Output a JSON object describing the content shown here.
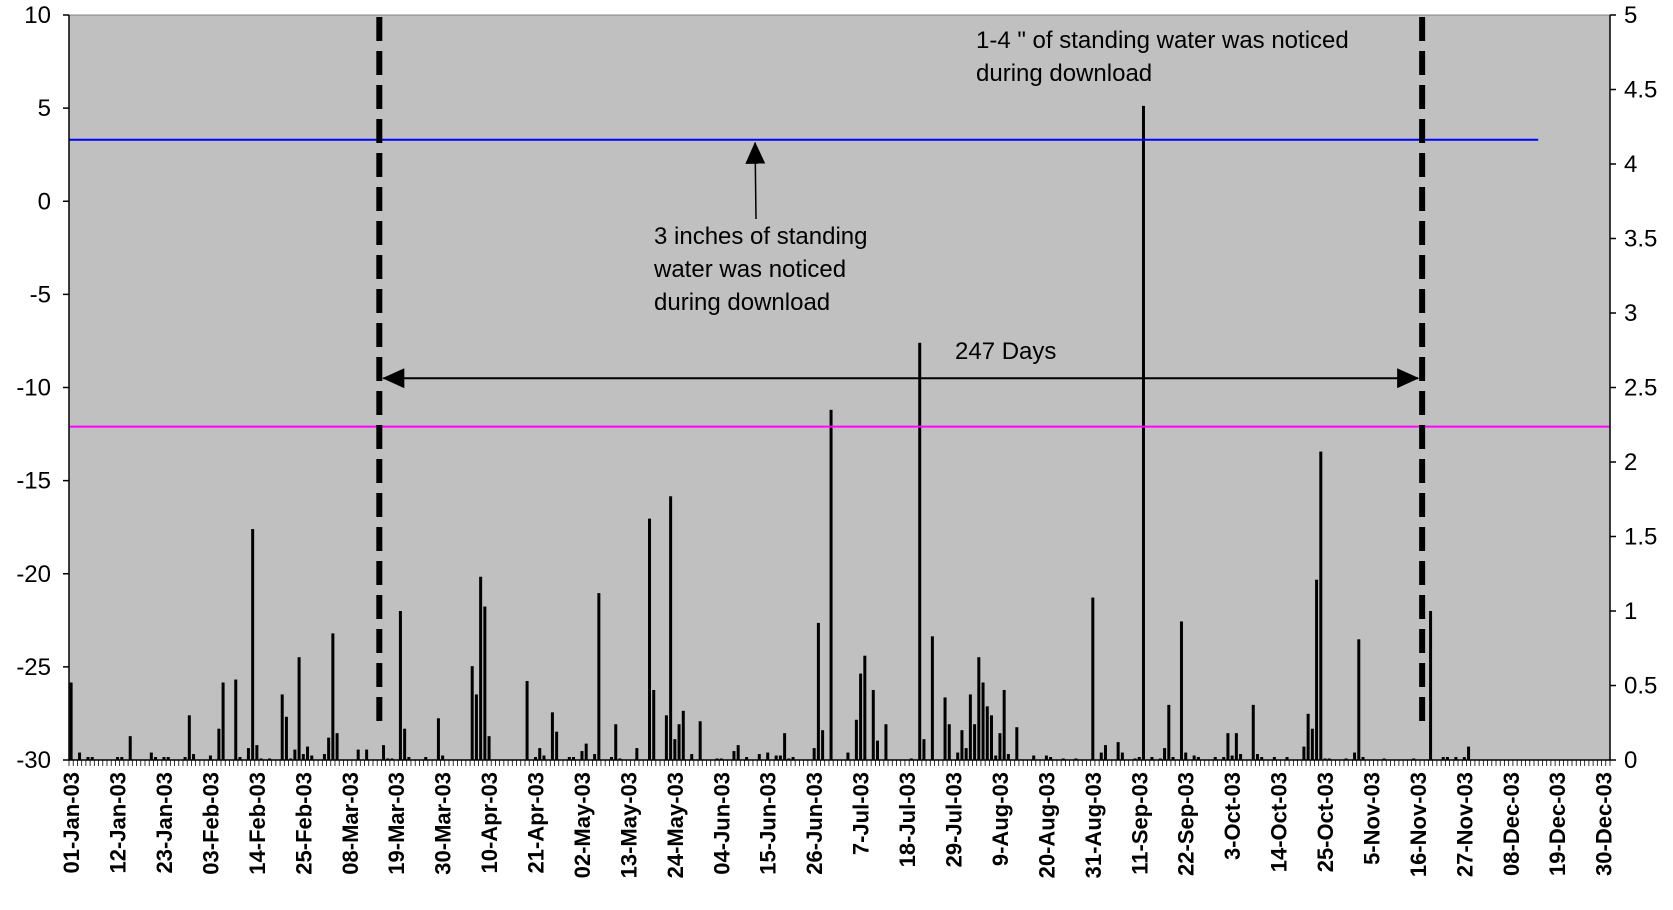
{
  "chart_data": {
    "type": "bar",
    "title": "",
    "xlabel": "",
    "ylabel": "",
    "plot_background": "#C0C0C0",
    "grid": false,
    "legend": "none",
    "x_start": "2003-01-01",
    "x_end": "2003-12-31",
    "x_tick_labels": [
      "01-Jan-03",
      "12-Jan-03",
      "23-Jan-03",
      "03-Feb-03",
      "14-Feb-03",
      "25-Feb-03",
      "08-Mar-03",
      "19-Mar-03",
      "30-Mar-03",
      "10-Apr-03",
      "21-Apr-03",
      "02-May-03",
      "13-May-03",
      "24-May-03",
      "04-Jun-03",
      "15-Jun-03",
      "26-Jun-03",
      "7-Jul-03",
      "18-Jul-03",
      "29-Jul-03",
      "9-Aug-03",
      "20-Aug-03",
      "31-Aug-03",
      "11-Sep-03",
      "22-Sep-03",
      "3-Oct-03",
      "14-Oct-03",
      "25-Oct-03",
      "5-Nov-03",
      "16-Nov-03",
      "27-Nov-03",
      "08-Dec-03",
      "19-Dec-03",
      "30-Dec-03"
    ],
    "y_left": {
      "ylim": [
        -30,
        10
      ],
      "ticks": [
        "10",
        "5",
        "0",
        "-5",
        "-10",
        "-15",
        "-20",
        "-25",
        "-30"
      ]
    },
    "y_right": {
      "ylim": [
        0,
        5
      ],
      "ticks": [
        "5",
        "4.5",
        "4",
        "3.5",
        "3",
        "2.5",
        "2",
        "1.5",
        "1",
        "0.5",
        "0"
      ]
    },
    "series": [
      {
        "axis": "right",
        "color": "#000000",
        "points": [
          [
            "2003-01-01",
            0.52
          ],
          [
            "2003-01-03",
            0.05
          ],
          [
            "2003-01-05",
            0.02
          ],
          [
            "2003-01-06",
            0.02
          ],
          [
            "2003-01-12",
            0.02
          ],
          [
            "2003-01-13",
            0.02
          ],
          [
            "2003-01-15",
            0.16
          ],
          [
            "2003-01-20",
            0.05
          ],
          [
            "2003-01-21",
            0.02
          ],
          [
            "2003-01-23",
            0.02
          ],
          [
            "2003-01-24",
            0.02
          ],
          [
            "2003-01-28",
            0.02
          ],
          [
            "2003-01-29",
            0.3
          ],
          [
            "2003-01-30",
            0.04
          ],
          [
            "2003-02-03",
            0.03
          ],
          [
            "2003-02-05",
            0.21
          ],
          [
            "2003-02-06",
            0.52
          ],
          [
            "2003-02-09",
            0.54
          ],
          [
            "2003-02-10",
            0.02
          ],
          [
            "2003-02-12",
            0.08
          ],
          [
            "2003-02-13",
            1.55
          ],
          [
            "2003-02-14",
            0.1
          ],
          [
            "2003-02-15",
            0.01
          ],
          [
            "2003-02-17",
            0.01
          ],
          [
            "2003-02-20",
            0.44
          ],
          [
            "2003-02-21",
            0.29
          ],
          [
            "2003-02-22",
            0.01
          ],
          [
            "2003-02-23",
            0.07
          ],
          [
            "2003-02-24",
            0.69
          ],
          [
            "2003-02-25",
            0.04
          ],
          [
            "2003-02-26",
            0.09
          ],
          [
            "2003-02-27",
            0.03
          ],
          [
            "2003-03-02",
            0.04
          ],
          [
            "2003-03-03",
            0.15
          ],
          [
            "2003-03-04",
            0.85
          ],
          [
            "2003-03-05",
            0.18
          ],
          [
            "2003-03-10",
            0.07
          ],
          [
            "2003-03-12",
            0.07
          ],
          [
            "2003-03-16",
            0.1
          ],
          [
            "2003-03-17",
            0.01
          ],
          [
            "2003-03-18",
            0.01
          ],
          [
            "2003-03-20",
            1.0
          ],
          [
            "2003-03-21",
            0.21
          ],
          [
            "2003-03-22",
            0.02
          ],
          [
            "2003-03-26",
            0.02
          ],
          [
            "2003-03-29",
            0.28
          ],
          [
            "2003-03-30",
            0.03
          ],
          [
            "2003-04-06",
            0.63
          ],
          [
            "2003-04-07",
            0.44
          ],
          [
            "2003-04-08",
            1.23
          ],
          [
            "2003-04-09",
            1.03
          ],
          [
            "2003-04-10",
            0.16
          ],
          [
            "2003-04-19",
            0.53
          ],
          [
            "2003-04-21",
            0.02
          ],
          [
            "2003-04-22",
            0.08
          ],
          [
            "2003-04-23",
            0.03
          ],
          [
            "2003-04-25",
            0.32
          ],
          [
            "2003-04-26",
            0.19
          ],
          [
            "2003-04-29",
            0.02
          ],
          [
            "2003-04-30",
            0.02
          ],
          [
            "2003-05-02",
            0.06
          ],
          [
            "2003-05-03",
            0.11
          ],
          [
            "2003-05-05",
            0.04
          ],
          [
            "2003-05-06",
            1.12
          ],
          [
            "2003-05-09",
            0.02
          ],
          [
            "2003-05-10",
            0.24
          ],
          [
            "2003-05-11",
            0.01
          ],
          [
            "2003-05-15",
            0.08
          ],
          [
            "2003-05-18",
            1.62
          ],
          [
            "2003-05-19",
            0.47
          ],
          [
            "2003-05-22",
            0.3
          ],
          [
            "2003-05-23",
            1.77
          ],
          [
            "2003-05-24",
            0.14
          ],
          [
            "2003-05-25",
            0.24
          ],
          [
            "2003-05-26",
            0.33
          ],
          [
            "2003-05-28",
            0.04
          ],
          [
            "2003-05-30",
            0.26
          ],
          [
            "2003-06-03",
            0.01
          ],
          [
            "2003-06-04",
            0.01
          ],
          [
            "2003-06-07",
            0.06
          ],
          [
            "2003-06-08",
            0.1
          ],
          [
            "2003-06-10",
            0.02
          ],
          [
            "2003-06-13",
            0.04
          ],
          [
            "2003-06-15",
            0.05
          ],
          [
            "2003-06-17",
            0.03
          ],
          [
            "2003-06-18",
            0.03
          ],
          [
            "2003-06-19",
            0.18
          ],
          [
            "2003-06-20",
            0.01
          ],
          [
            "2003-06-21",
            0.02
          ],
          [
            "2003-06-26",
            0.08
          ],
          [
            "2003-06-27",
            0.92
          ],
          [
            "2003-06-28",
            0.2
          ],
          [
            "2003-06-30",
            2.35
          ],
          [
            "2003-07-04",
            0.05
          ],
          [
            "2003-07-06",
            0.27
          ],
          [
            "2003-07-07",
            0.58
          ],
          [
            "2003-07-08",
            0.7
          ],
          [
            "2003-07-10",
            0.47
          ],
          [
            "2003-07-11",
            0.13
          ],
          [
            "2003-07-13",
            0.24
          ],
          [
            "2003-07-19",
            0.01
          ],
          [
            "2003-07-21",
            2.8
          ],
          [
            "2003-07-22",
            0.14
          ],
          [
            "2003-07-24",
            0.83
          ],
          [
            "2003-07-27",
            0.42
          ],
          [
            "2003-07-28",
            0.24
          ],
          [
            "2003-07-30",
            0.05
          ],
          [
            "2003-07-31",
            0.2
          ],
          [
            "2003-08-01",
            0.08
          ],
          [
            "2003-08-02",
            0.44
          ],
          [
            "2003-08-03",
            0.24
          ],
          [
            "2003-08-04",
            0.69
          ],
          [
            "2003-08-05",
            0.52
          ],
          [
            "2003-08-06",
            0.36
          ],
          [
            "2003-08-07",
            0.3
          ],
          [
            "2003-08-08",
            0.03
          ],
          [
            "2003-08-09",
            0.18
          ],
          [
            "2003-08-10",
            0.47
          ],
          [
            "2003-08-11",
            0.04
          ],
          [
            "2003-08-13",
            0.22
          ],
          [
            "2003-08-17",
            0.03
          ],
          [
            "2003-08-20",
            0.03
          ],
          [
            "2003-08-21",
            0.02
          ],
          [
            "2003-08-24",
            0.01
          ],
          [
            "2003-08-27",
            0.01
          ],
          [
            "2003-08-31",
            1.09
          ],
          [
            "2003-09-02",
            0.05
          ],
          [
            "2003-09-03",
            0.1
          ],
          [
            "2003-09-06",
            0.12
          ],
          [
            "2003-09-07",
            0.05
          ],
          [
            "2003-09-10",
            0.01
          ],
          [
            "2003-09-11",
            0.02
          ],
          [
            "2003-09-12",
            4.39
          ],
          [
            "2003-09-14",
            0.02
          ],
          [
            "2003-09-16",
            0.01
          ],
          [
            "2003-09-17",
            0.08
          ],
          [
            "2003-09-18",
            0.37
          ],
          [
            "2003-09-19",
            0.02
          ],
          [
            "2003-09-21",
            0.93
          ],
          [
            "2003-09-22",
            0.05
          ],
          [
            "2003-09-24",
            0.03
          ],
          [
            "2003-09-25",
            0.02
          ],
          [
            "2003-09-29",
            0.02
          ],
          [
            "2003-10-01",
            0.02
          ],
          [
            "2003-10-02",
            0.18
          ],
          [
            "2003-10-03",
            0.03
          ],
          [
            "2003-10-04",
            0.18
          ],
          [
            "2003-10-05",
            0.04
          ],
          [
            "2003-10-08",
            0.37
          ],
          [
            "2003-10-09",
            0.04
          ],
          [
            "2003-10-10",
            0.02
          ],
          [
            "2003-10-13",
            0.02
          ],
          [
            "2003-10-16",
            0.02
          ],
          [
            "2003-10-20",
            0.09
          ],
          [
            "2003-10-21",
            0.31
          ],
          [
            "2003-10-22",
            0.21
          ],
          [
            "2003-10-23",
            1.21
          ],
          [
            "2003-10-24",
            2.07
          ],
          [
            "2003-10-25",
            0.01
          ],
          [
            "2003-10-26",
            0.01
          ],
          [
            "2003-10-30",
            0.01
          ],
          [
            "2003-11-01",
            0.05
          ],
          [
            "2003-11-02",
            0.81
          ],
          [
            "2003-11-03",
            0.02
          ],
          [
            "2003-11-08",
            0.01
          ],
          [
            "2003-11-15",
            0.01
          ],
          [
            "2003-11-19",
            1.0
          ],
          [
            "2003-11-22",
            0.02
          ],
          [
            "2003-11-23",
            0.02
          ],
          [
            "2003-11-25",
            0.02
          ],
          [
            "2003-11-27",
            0.02
          ],
          [
            "2003-11-28",
            0.09
          ]
        ]
      },
      {
        "axis": "left",
        "type": "hline",
        "color": "#0000FF",
        "y": 3.3,
        "x_range": [
          "2003-01-01",
          "2003-12-14"
        ]
      },
      {
        "axis": "left",
        "type": "hline",
        "color": "#FF00FF",
        "y": -12.1,
        "x_range": [
          "2003-01-01",
          "2003-12-31"
        ]
      }
    ],
    "vlines": [
      {
        "date": "2003-03-15",
        "style": "dashed",
        "color": "#000000"
      },
      {
        "date": "2003-11-17",
        "style": "dashed",
        "color": "#000000"
      }
    ],
    "annotations": [
      {
        "lines": [
          "1-4 \" of standing water was noticed",
          "during download"
        ]
      },
      {
        "lines": [
          "3 inches of standing",
          "water was noticed",
          "during download"
        ],
        "arrow_to": {
          "date": "2003-06-12",
          "y_left": 3.3
        }
      },
      {
        "lines": [
          "247 Days"
        ],
        "double_arrow": {
          "from": "2003-03-15",
          "to": "2003-11-17",
          "y_left": -9.5
        }
      }
    ]
  }
}
